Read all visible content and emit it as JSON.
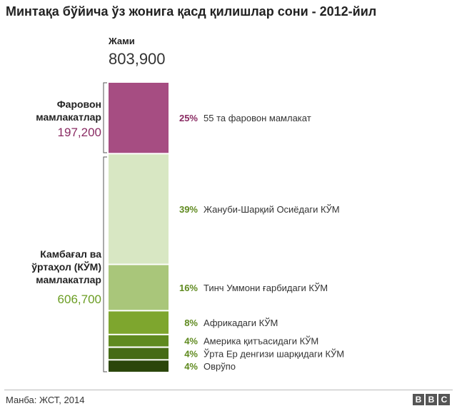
{
  "title": "Минтақа бўйича ўз жонига қасд қилишлар сони - 2012-йил",
  "total": {
    "label": "Жами",
    "value": "803,900"
  },
  "groups": {
    "rich": {
      "label_line1": "Фаровон",
      "label_line2": "мамлакатлар",
      "value": "197,200",
      "color": "#a64d82"
    },
    "poor": {
      "label_line1": "Камбағал ва",
      "label_line2": "ўртаҳол (КЎМ)",
      "label_line3": "мамлакатлар",
      "value": "606,700",
      "color": "#6b9d23"
    }
  },
  "chart_data": {
    "type": "bar",
    "title": "Минтақа бўйича ўз жонига қасд қилишлар сони - 2012-йил",
    "stacked": true,
    "total": 803900,
    "categories": [
      "55 та фаровон мамлакат",
      "Жануби-Шарқий Осиёдаги КЎМ",
      "Тинч Уммони ғарбидаги КЎМ",
      "Африкадаги КЎМ",
      "Америка қитъасидаги КЎМ",
      "Ўрта Ер денгизи шарқидаги КЎМ",
      "Оврўпо"
    ],
    "values": [
      25,
      39,
      16,
      8,
      4,
      4,
      4
    ],
    "value_labels": [
      "25%",
      "39%",
      "16%",
      "8%",
      "4%",
      "4%",
      "4%"
    ],
    "unit": "%",
    "colors": [
      "#a64d82",
      "#d8e7c3",
      "#a9c67a",
      "#7ea62e",
      "#5f8a1f",
      "#456b15",
      "#2b460b"
    ],
    "label_colors": [
      "#8a2b63",
      "#5f8a1f",
      "#5f8a1f",
      "#5f8a1f",
      "#5f8a1f",
      "#5f8a1f",
      "#5f8a1f"
    ]
  },
  "footer": {
    "source": "Манба: ЖСТ, 2014",
    "logo": [
      "B",
      "B",
      "C"
    ]
  }
}
